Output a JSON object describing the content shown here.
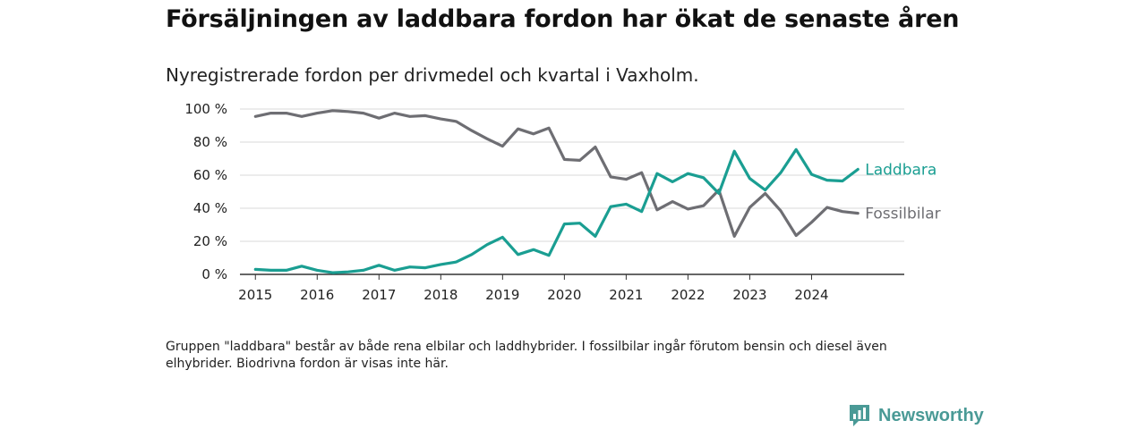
{
  "title": "Försäljningen av laddbara fordon har ökat de senaste åren",
  "subtitle": "Nyregistrerade fordon per drivmedel och kvartal i Vaxholm.",
  "note": "Gruppen \"laddbara\" består av både rena elbilar och laddhybrider. I fossilbilar ingår förutom bensin och diesel även elhybrider. Biodrivna fordon är visas inte här.",
  "logo": {
    "text": "Newsworthy",
    "icon": "newsworthy-logo-icon"
  },
  "chart_data": {
    "type": "line",
    "title": "Försäljningen av laddbara fordon har ökat de senaste åren",
    "xlabel": "",
    "ylabel": "",
    "xlim": [
      2014.75,
      2025.5
    ],
    "ylim": [
      0,
      100
    ],
    "x_ticks": [
      2015,
      2016,
      2017,
      2018,
      2019,
      2020,
      2021,
      2022,
      2023,
      2024
    ],
    "y_ticks": [
      0,
      20,
      40,
      60,
      80,
      100
    ],
    "y_tick_labels": [
      "0 %",
      "20 %",
      "40 %",
      "60 %",
      "80 %",
      "100 %"
    ],
    "grid": true,
    "legend": "inline-right",
    "x": [
      2015.0,
      2015.25,
      2015.5,
      2015.75,
      2016.0,
      2016.25,
      2016.5,
      2016.75,
      2017.0,
      2017.25,
      2017.5,
      2017.75,
      2018.0,
      2018.25,
      2018.5,
      2018.75,
      2019.0,
      2019.25,
      2019.5,
      2019.75,
      2020.0,
      2020.25,
      2020.5,
      2020.75,
      2021.0,
      2021.25,
      2021.5,
      2021.75,
      2022.0,
      2022.25,
      2022.5,
      2022.75,
      2023.0,
      2023.25,
      2023.5,
      2023.75,
      2024.0,
      2024.25,
      2024.5,
      2024.75
    ],
    "series": [
      {
        "name": "Laddbara",
        "color": "#1a9e92",
        "values": [
          3,
          2.5,
          2.5,
          5,
          2.5,
          1,
          1.5,
          2.5,
          5.5,
          2.5,
          4.5,
          4,
          6,
          7.5,
          12,
          18,
          22.5,
          12,
          15,
          11.5,
          30.5,
          31,
          23,
          41,
          42.5,
          38,
          61,
          56,
          61,
          58.5,
          49,
          74.5,
          58,
          51,
          61.5,
          75.5,
          60.5,
          57,
          56.5,
          63.5
        ]
      },
      {
        "name": "Fossilbilar",
        "color": "#6e6e73",
        "values": [
          95.5,
          97.5,
          97.5,
          95.5,
          97.5,
          99,
          98.5,
          97.5,
          94.5,
          97.5,
          95.5,
          96,
          94,
          92.5,
          87,
          82,
          77.5,
          88,
          85,
          88.5,
          69.5,
          69,
          77,
          59,
          57.5,
          61.5,
          39,
          44,
          39.5,
          41.5,
          51,
          23,
          40.5,
          49,
          38.5,
          23.5,
          31.5,
          40.5,
          38,
          37
        ]
      }
    ]
  }
}
